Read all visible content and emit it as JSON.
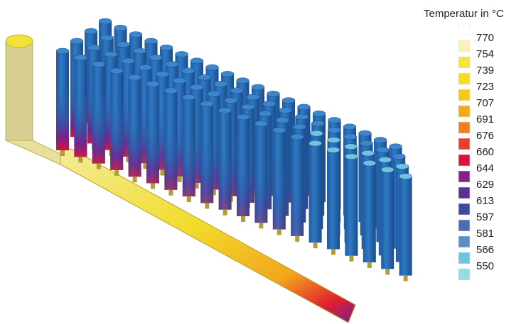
{
  "legend": {
    "title": "Temperatur in °C",
    "labels": [
      "770",
      "754",
      "739",
      "723",
      "707",
      "691",
      "676",
      "660",
      "644",
      "629",
      "613",
      "597",
      "581",
      "566",
      "550"
    ],
    "colors": [
      "#ffffff",
      "#fbf2b5",
      "#f5e43a",
      "#f7dd1d",
      "#f8c817",
      "#f4a81d",
      "#f07f1c",
      "#e5402a",
      "#d7133c",
      "#8b1f8a",
      "#5a3192",
      "#3f4aa0",
      "#4b6db2",
      "#5a8fc6",
      "#6fc3df",
      "#93dbe5"
    ]
  }
}
